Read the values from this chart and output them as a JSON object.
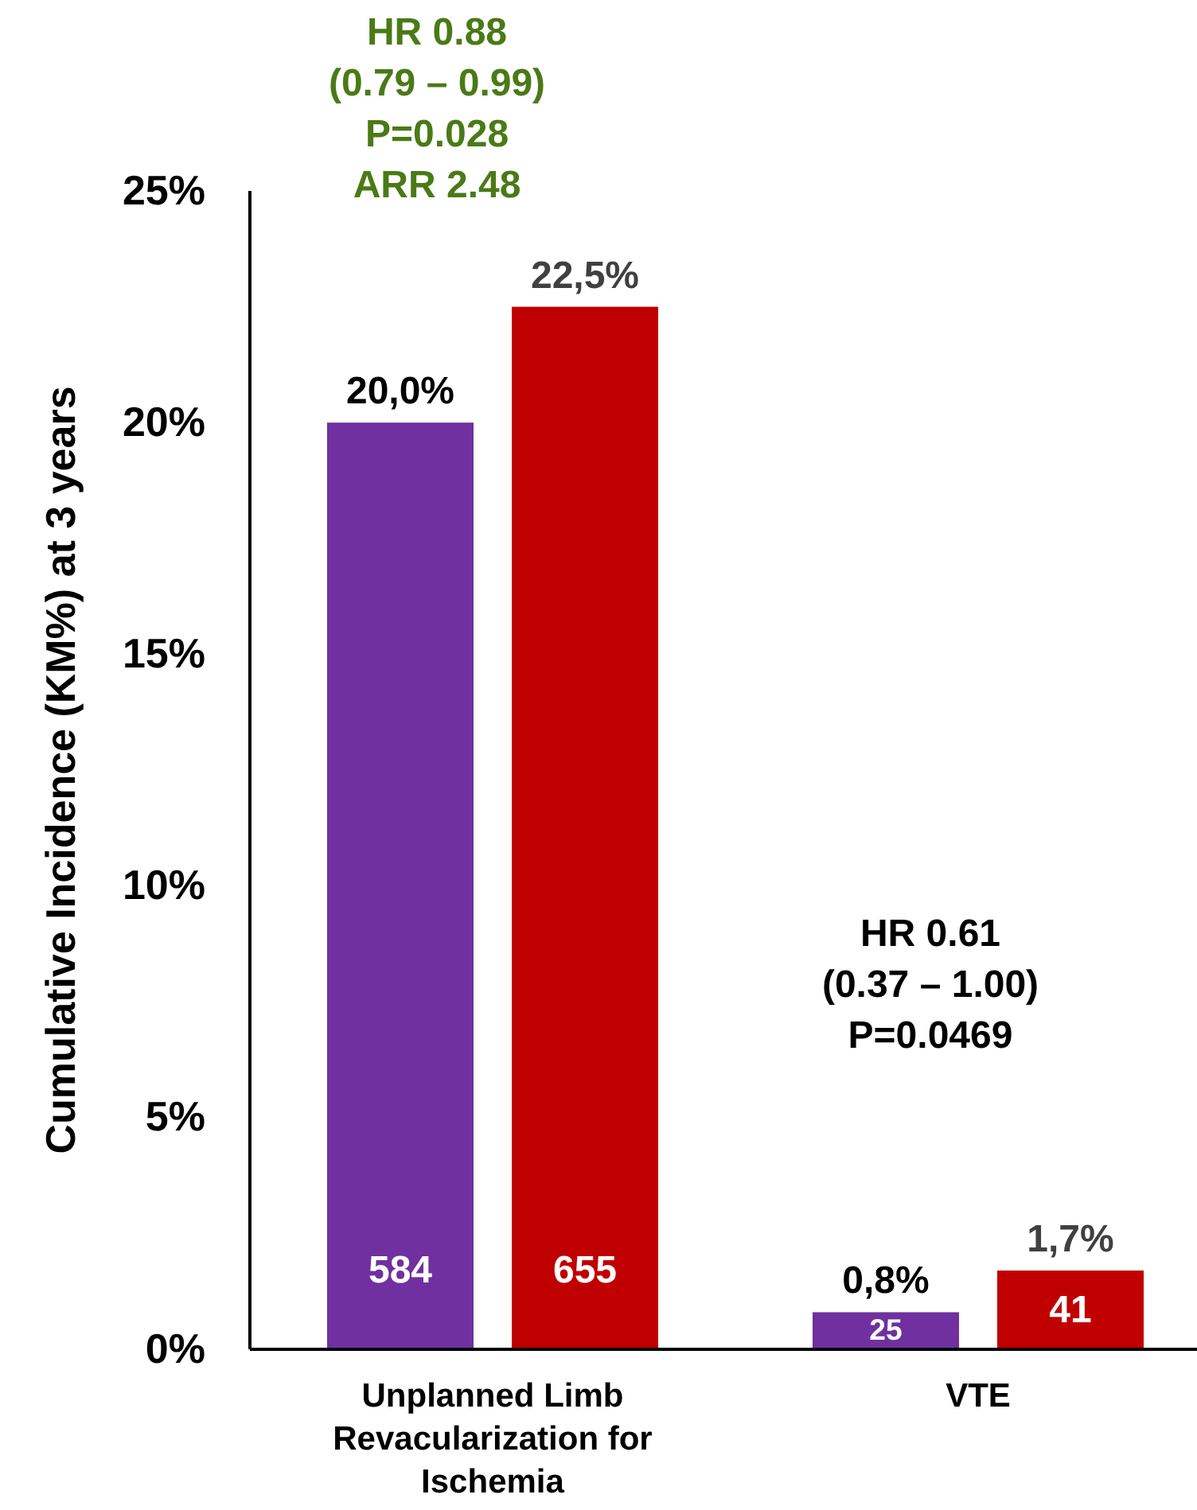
{
  "chart_data": {
    "type": "bar",
    "ylabel": "Cumulative Incidence (KM%) at 3 years",
    "categories": [
      "Unplanned Limb Revacularization for Ischemia",
      "VTE"
    ],
    "series": [
      {
        "color": "#7030a0",
        "values": [
          20.0,
          0.8
        ],
        "value_labels": [
          "20,0%",
          "0,8%"
        ]
      },
      {
        "color": "#c00000",
        "values": [
          22.5,
          1.7
        ],
        "value_labels": [
          "22,5%",
          "1,7%"
        ]
      }
    ],
    "ylim": [
      0,
      25
    ],
    "yticks": [
      {
        "value": 0,
        "label": "0%"
      },
      {
        "value": 5,
        "label": "5%"
      },
      {
        "value": 10,
        "label": "10%"
      },
      {
        "value": 15,
        "label": "15%"
      },
      {
        "value": 20,
        "label": "20%"
      },
      {
        "value": 25,
        "label": "25%"
      }
    ],
    "grid": false,
    "annotations": [
      "HR 0.88\n(0.79 – 0.99)\nP=0.028\nARR 2.48",
      "HR 0.61\n(0.37 – 1.00)\nP=0.0469",
      "584",
      "655",
      "25",
      "41"
    ]
  }
}
